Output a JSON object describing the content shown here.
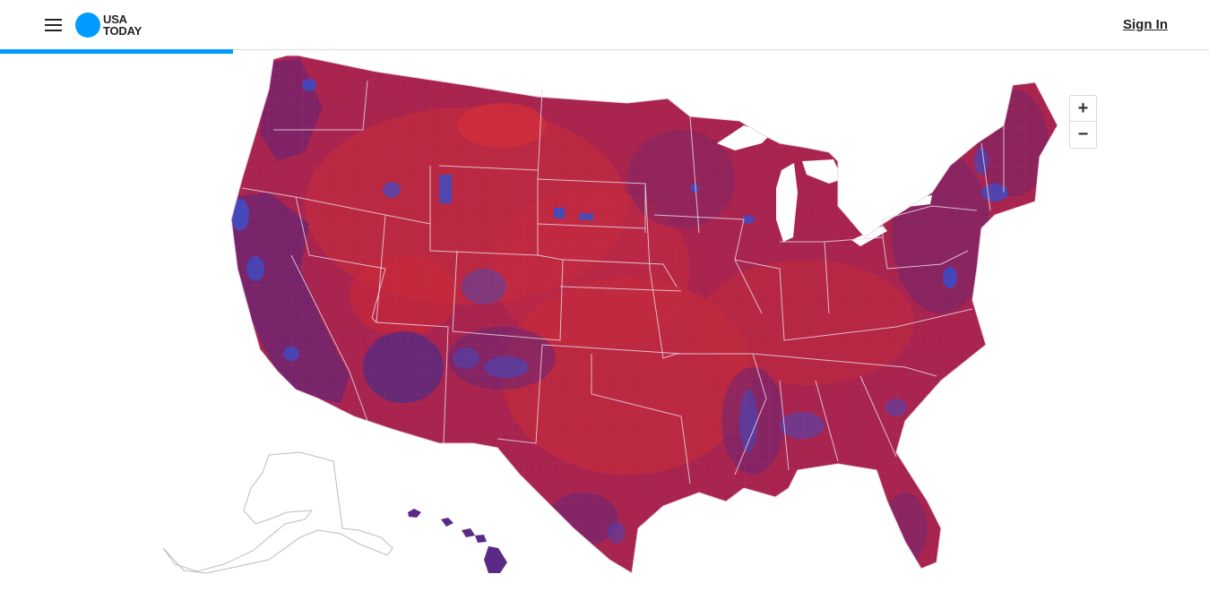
{
  "header": {
    "logo_line1": "USA",
    "logo_line2": "TODAY",
    "signin_label": "Sign In",
    "menu_icon": "hamburger-menu-icon"
  },
  "progress": {
    "fraction": 0.193
  },
  "map": {
    "zoom_in_label": "+",
    "zoom_out_label": "−",
    "colors": {
      "red": "#c8273c",
      "red_purple": "#a0245a",
      "purple": "#6e2470",
      "blue": "#3a4cc8",
      "state_border": "#e6d6e6",
      "outline_gray": "#bcbcbc"
    }
  }
}
